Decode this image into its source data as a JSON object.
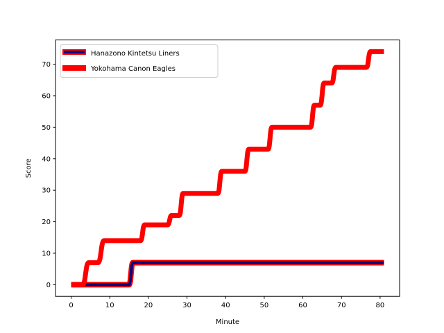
{
  "chart_data": {
    "type": "line",
    "title": "",
    "xlabel": "Minute",
    "ylabel": "Score",
    "xlim": [
      -4.05,
      85.05
    ],
    "ylim": [
      -3.7,
      77.7
    ],
    "xticks": [
      0,
      10,
      20,
      30,
      40,
      50,
      60,
      70,
      80
    ],
    "yticks": [
      0,
      10,
      20,
      30,
      40,
      50,
      60,
      70
    ],
    "grid": false,
    "legend_position": "top-left",
    "series": [
      {
        "name": "Hanazono Kintetsu Liners",
        "color": "#000080",
        "edge_color": "#ff0000",
        "x": [
          0,
          3,
          4,
          15,
          16,
          81
        ],
        "y": [
          0,
          0,
          0,
          0,
          7,
          7
        ]
      },
      {
        "name": "Yokohama Canon Eagles",
        "color": "#ff0000",
        "x": [
          0,
          3,
          4.5,
          7,
          8.5,
          18,
          19,
          25,
          26,
          28,
          29,
          38,
          39,
          45,
          46,
          51,
          52,
          62,
          63,
          64.5,
          65.5,
          67.5,
          68.5,
          76.5,
          77.5,
          81
        ],
        "y": [
          0,
          0,
          7,
          7,
          14,
          14,
          19,
          19,
          22,
          22,
          29,
          29,
          36,
          36,
          43,
          43,
          50,
          50,
          57,
          57,
          64,
          64,
          69,
          69,
          74,
          74
        ]
      }
    ]
  }
}
